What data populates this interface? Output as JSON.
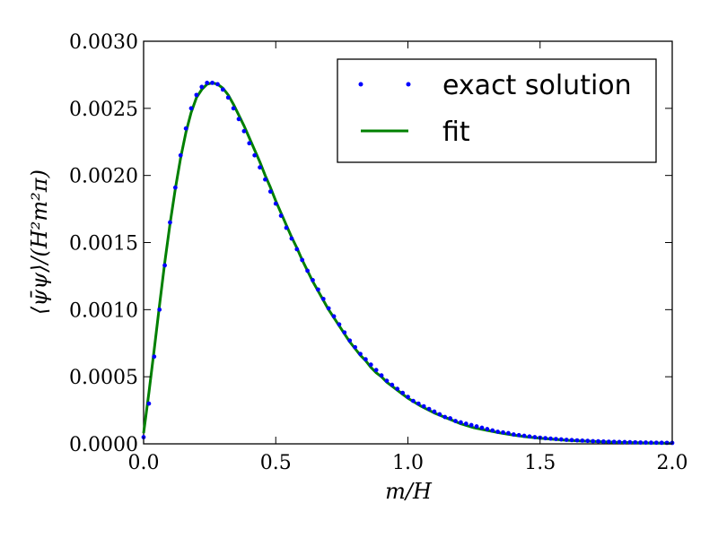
{
  "chart_data": {
    "type": "line",
    "xlabel": "m/H",
    "ylabel": "⟨ψ̄ψ⟩/(H²m²π)",
    "xlim": [
      0.0,
      2.0
    ],
    "ylim": [
      0.0,
      0.003
    ],
    "xticks": [
      0.0,
      0.5,
      1.0,
      1.5,
      2.0
    ],
    "xtick_labels": [
      "0.0",
      "0.5",
      "1.0",
      "1.5",
      "2.0"
    ],
    "yticks": [
      0.0,
      0.0005,
      0.001,
      0.0015,
      0.002,
      0.0025,
      0.003
    ],
    "ytick_labels": [
      "0.0000",
      "0.0005",
      "0.0010",
      "0.0015",
      "0.0020",
      "0.0025",
      "0.0030"
    ],
    "grid": false,
    "legend_position": "top-right",
    "series": [
      {
        "name": "exact solution",
        "style": "points",
        "color": "#0000ff",
        "x": [
          0.0,
          0.02,
          0.04,
          0.06,
          0.08,
          0.1,
          0.12,
          0.14,
          0.16,
          0.18,
          0.2,
          0.22,
          0.24,
          0.26,
          0.28,
          0.3,
          0.32,
          0.34,
          0.36,
          0.38,
          0.4,
          0.42,
          0.44,
          0.46,
          0.48,
          0.5,
          0.52,
          0.54,
          0.56,
          0.58,
          0.6,
          0.62,
          0.64,
          0.66,
          0.68,
          0.7,
          0.72,
          0.74,
          0.76,
          0.78,
          0.8,
          0.82,
          0.84,
          0.86,
          0.88,
          0.9,
          0.92,
          0.94,
          0.96,
          0.98,
          1.0,
          1.02,
          1.04,
          1.06,
          1.08,
          1.1,
          1.12,
          1.14,
          1.16,
          1.18,
          1.2,
          1.22,
          1.24,
          1.26,
          1.28,
          1.3,
          1.32,
          1.34,
          1.36,
          1.38,
          1.4,
          1.42,
          1.44,
          1.46,
          1.48,
          1.5,
          1.52,
          1.54,
          1.56,
          1.58,
          1.6,
          1.62,
          1.64,
          1.66,
          1.68,
          1.7,
          1.72,
          1.74,
          1.76,
          1.78,
          1.8,
          1.82,
          1.84,
          1.86,
          1.88,
          1.9,
          1.92,
          1.94,
          1.96,
          1.98,
          2.0
        ],
        "y": [
          5e-05,
          0.0003,
          0.00065,
          0.001,
          0.00133,
          0.00165,
          0.00191,
          0.00215,
          0.00235,
          0.0025,
          0.0026,
          0.00266,
          0.00269,
          0.00269,
          0.00268,
          0.00264,
          0.00258,
          0.0025,
          0.00242,
          0.00233,
          0.00224,
          0.00215,
          0.00206,
          0.00197,
          0.00188,
          0.00179,
          0.0017,
          0.00161,
          0.00153,
          0.00145,
          0.00137,
          0.00129,
          0.00122,
          0.00115,
          0.00108,
          0.00101,
          0.00095,
          0.00089,
          0.00083,
          0.00077,
          0.00072,
          0.00067,
          0.00063,
          0.00059,
          0.00055,
          0.00051,
          0.00047,
          0.00044,
          0.00041,
          0.00038,
          0.00035,
          0.00032,
          0.0003,
          0.00028,
          0.00026,
          0.00024,
          0.00022,
          0.0002,
          0.00019,
          0.00017,
          0.00016,
          0.00015,
          0.00014,
          0.00013,
          0.00012,
          0.00011,
          0.0001,
          9e-05,
          8.5e-05,
          8e-05,
          7e-05,
          6.5e-05,
          6e-05,
          5.5e-05,
          5e-05,
          4.6e-05,
          4.2e-05,
          3.9e-05,
          3.6e-05,
          3.3e-05,
          3e-05,
          2.8e-05,
          2.6e-05,
          2.4e-05,
          2.2e-05,
          2e-05,
          1.9e-05,
          1.7e-05,
          1.6e-05,
          1.5e-05,
          1.4e-05,
          1.3e-05,
          1.2e-05,
          1.1e-05,
          1e-05,
          9.5e-06,
          9e-06,
          8.5e-06,
          8e-06,
          7.5e-06,
          7e-06
        ]
      },
      {
        "name": "fit",
        "style": "line",
        "color": "#008000",
        "x": [
          0.0,
          0.02,
          0.04,
          0.06,
          0.08,
          0.1,
          0.12,
          0.14,
          0.16,
          0.18,
          0.2,
          0.22,
          0.24,
          0.26,
          0.28,
          0.3,
          0.32,
          0.34,
          0.36,
          0.38,
          0.4,
          0.42,
          0.44,
          0.46,
          0.48,
          0.5,
          0.52,
          0.54,
          0.56,
          0.58,
          0.6,
          0.62,
          0.64,
          0.66,
          0.68,
          0.7,
          0.72,
          0.74,
          0.76,
          0.78,
          0.8,
          0.82,
          0.84,
          0.86,
          0.88,
          0.9,
          0.92,
          0.94,
          0.96,
          0.98,
          1.0,
          1.05,
          1.1,
          1.15,
          1.2,
          1.25,
          1.3,
          1.35,
          1.4,
          1.45,
          1.5,
          1.55,
          1.6,
          1.65,
          1.7,
          1.75,
          1.8,
          1.85,
          1.9,
          1.95,
          2.0
        ],
        "y": [
          8e-05,
          0.00038,
          0.0007,
          0.00103,
          0.00135,
          0.00164,
          0.0019,
          0.00213,
          0.00232,
          0.00247,
          0.00258,
          0.00264,
          0.00268,
          0.00269,
          0.00268,
          0.00265,
          0.0026,
          0.00253,
          0.00245,
          0.00237,
          0.00228,
          0.00219,
          0.0021,
          0.002,
          0.00191,
          0.00181,
          0.00172,
          0.00163,
          0.00154,
          0.00146,
          0.00137,
          0.00129,
          0.00121,
          0.00114,
          0.00107,
          0.001,
          0.00094,
          0.00088,
          0.00082,
          0.00076,
          0.00071,
          0.00066,
          0.00062,
          0.00057,
          0.00053,
          0.0005,
          0.00046,
          0.00043,
          0.0004,
          0.00037,
          0.00034,
          0.00028,
          0.00023,
          0.00019,
          0.00015,
          0.00012,
          0.0001,
          8.1e-05,
          6.5e-05,
          5.2e-05,
          4.2e-05,
          3.4e-05,
          2.7e-05,
          2.2e-05,
          1.8e-05,
          1.4e-05,
          1.1e-05,
          9e-06,
          7e-06,
          5.5e-06,
          4.5e-06
        ]
      }
    ]
  }
}
